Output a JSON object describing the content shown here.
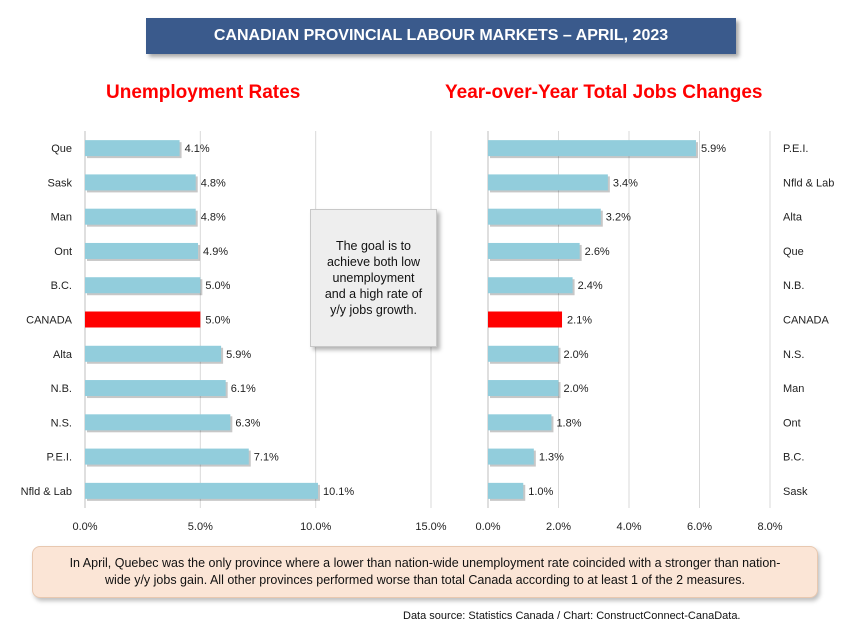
{
  "banner": "CANADIAN PROVINCIAL LABOUR MARKETS – APRIL, 2023",
  "callout": "The goal is to achieve both low unemployment and a high rate of y/y jobs growth.",
  "note": "In April, Quebec was the only province where a lower than nation-wide unemployment rate coincided with a stronger than nation-wide y/y jobs gain. All other provinces performed worse than total Canada according to at least 1 of the 2 measures.",
  "source": "Data source: Statistics Canada / Chart: ConstructConnect-CanaData.",
  "colors": {
    "bar": "#92cddc",
    "highlight": "#ff0000",
    "title": "#ff0000",
    "banner": "#3a5a8c",
    "grid": "#d9d9d9"
  },
  "chart_data": [
    {
      "type": "bar",
      "orientation": "horizontal",
      "title": "Unemployment Rates",
      "categories": [
        "Que",
        "Sask",
        "Man",
        "Ont",
        "B.C.",
        "CANADA",
        "Alta",
        "N.B.",
        "N.S.",
        "P.E.I.",
        "Nfld & Lab"
      ],
      "values": [
        4.1,
        4.8,
        4.8,
        4.9,
        5.0,
        5.0,
        5.9,
        6.1,
        6.3,
        7.1,
        10.1
      ],
      "data_labels": [
        "4.1%",
        "4.8%",
        "4.8%",
        "4.9%",
        "5.0%",
        "5.0%",
        "5.9%",
        "6.1%",
        "6.3%",
        "7.1%",
        "10.1%"
      ],
      "highlight": "CANADA",
      "xlim": [
        0,
        15
      ],
      "ticks": [
        0,
        5,
        10,
        15
      ],
      "tick_labels": [
        "0.0%",
        "5.0%",
        "10.0%",
        "15.0%"
      ],
      "category_labels_side": "left",
      "grid": true
    },
    {
      "type": "bar",
      "orientation": "horizontal",
      "title": "Year-over-Year Total Jobs Changes",
      "categories": [
        "P.E.I.",
        "Nfld & Lab",
        "Alta",
        "Que",
        "N.B.",
        "CANADA",
        "N.S.",
        "Man",
        "Ont",
        "B.C.",
        "Sask"
      ],
      "values": [
        5.9,
        3.4,
        3.2,
        2.6,
        2.4,
        2.1,
        2.0,
        2.0,
        1.8,
        1.3,
        1.0
      ],
      "data_labels": [
        "5.9%",
        "3.4%",
        "3.2%",
        "2.6%",
        "2.4%",
        "2.1%",
        "2.0%",
        "2.0%",
        "1.8%",
        "1.3%",
        "1.0%"
      ],
      "highlight": "CANADA",
      "xlim": [
        0,
        8
      ],
      "ticks": [
        0,
        2,
        4,
        6,
        8
      ],
      "tick_labels": [
        "0.0%",
        "2.0%",
        "4.0%",
        "6.0%",
        "8.0%"
      ],
      "category_labels_side": "right",
      "grid": true
    }
  ]
}
